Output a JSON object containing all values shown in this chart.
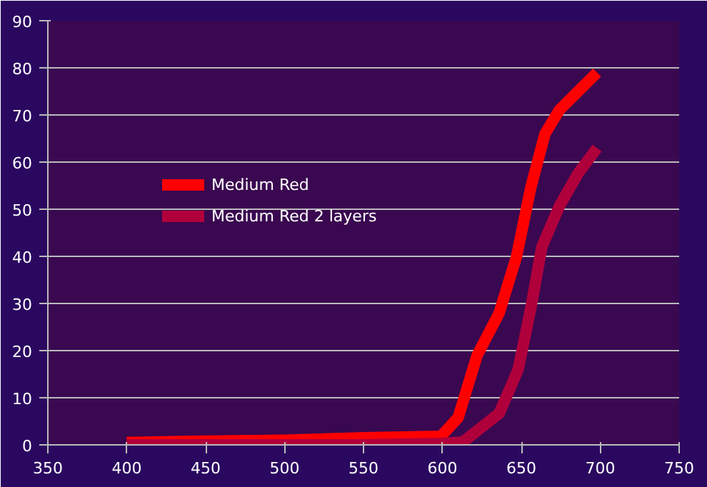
{
  "chart_data": {
    "type": "line",
    "xlim": [
      350,
      750
    ],
    "xticks": [
      350,
      400,
      450,
      500,
      550,
      600,
      650,
      700,
      750
    ],
    "ylim": [
      0,
      90
    ],
    "yticks": [
      0,
      10,
      20,
      30,
      40,
      50,
      60,
      70,
      80,
      90
    ],
    "grid": "y",
    "legend": "top left",
    "marker": "none",
    "line_style": "solid",
    "series": [
      {
        "name": "Medium Red",
        "color": "#ff0000",
        "x": [
          400,
          450,
          500,
          550,
          599,
          610,
          622,
          636,
          647,
          656,
          665,
          674,
          686,
          698
        ],
        "values": [
          0.5,
          0.8,
          1,
          1.5,
          1.8,
          5.8,
          19,
          28,
          40,
          54.6,
          66,
          71,
          75,
          79
        ]
      },
      {
        "name": "Medium Red 2 layers",
        "color": "#b0003c",
        "x": [
          400,
          450,
          500,
          550,
          600,
          613,
          636,
          648,
          656,
          663,
          674,
          686,
          698
        ],
        "values": [
          0,
          0,
          0,
          0,
          0.3,
          0.6,
          6.7,
          16,
          29,
          42,
          50.6,
          57.6,
          63
        ]
      }
    ]
  }
}
